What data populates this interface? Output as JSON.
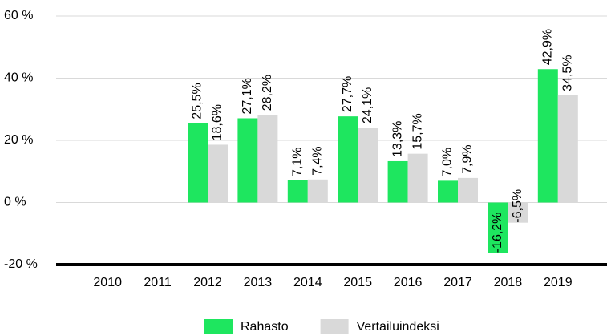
{
  "chart_data": {
    "type": "bar",
    "categories": [
      "2010",
      "2011",
      "2012",
      "2013",
      "2014",
      "2015",
      "2016",
      "2017",
      "2018",
      "2019"
    ],
    "series": [
      {
        "name": "Rahasto",
        "color": "#1ee65f",
        "values": [
          null,
          null,
          25.5,
          27.1,
          7.1,
          27.7,
          13.3,
          7.0,
          -16.2,
          42.9
        ],
        "value_labels": [
          null,
          null,
          "25,5%",
          "27,1%",
          "7,1%",
          "27,7%",
          "13,3%",
          "7,0%",
          "-16,2%",
          "42,9%"
        ]
      },
      {
        "name": "Vertailuindeksi",
        "color": "#d9d9d9",
        "values": [
          null,
          null,
          18.6,
          28.2,
          7.4,
          24.1,
          15.7,
          7.9,
          -6.5,
          34.5
        ],
        "value_labels": [
          null,
          null,
          "18,6%",
          "28,2%",
          "7,4%",
          "24,1%",
          "15,7%",
          "7,9%",
          "-6,5%",
          "34,5%"
        ]
      }
    ],
    "ylim": [
      -20,
      60
    ],
    "yticks": [
      {
        "value": -20,
        "label": "-20 %"
      },
      {
        "value": 0,
        "label": "0 %"
      },
      {
        "value": 20,
        "label": "20 %"
      },
      {
        "value": 40,
        "label": "40 %"
      },
      {
        "value": 60,
        "label": "60 %"
      }
    ],
    "grid": true,
    "legend": "bottom"
  }
}
